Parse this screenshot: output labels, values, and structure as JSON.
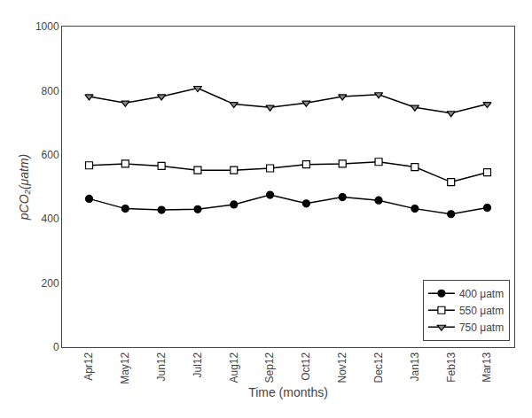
{
  "chart_data": {
    "type": "line",
    "categories": [
      "Apr12",
      "May12",
      "Jun12",
      "Jul12",
      "Aug12",
      "Sep12",
      "Oct12",
      "Nov12",
      "Dec12",
      "Jan13",
      "Feb13",
      "Mar13"
    ],
    "series": [
      {
        "name": "400 μatm",
        "color": "#000000",
        "marker": "circle",
        "values": [
          463,
          432,
          428,
          430,
          445,
          475,
          448,
          468,
          458,
          432,
          415,
          435
        ]
      },
      {
        "name": "550 μatm",
        "color": "#ffffff",
        "marker": "square",
        "values": [
          567,
          572,
          565,
          552,
          552,
          558,
          570,
          572,
          578,
          562,
          515,
          545
        ]
      },
      {
        "name": "750 μatm",
        "color": "#888888",
        "marker": "triangle-down",
        "values": [
          782,
          762,
          782,
          808,
          758,
          748,
          762,
          782,
          788,
          748,
          730,
          758
        ]
      }
    ],
    "color": "#000000",
    "x_label": "Time (months)",
    "y_label": "pCO₂(μatm)",
    "ylim": [
      0,
      1000
    ],
    "yticks": [
      0,
      200,
      400,
      600,
      800,
      1000
    ],
    "grid": false,
    "legend": "lower right"
  }
}
